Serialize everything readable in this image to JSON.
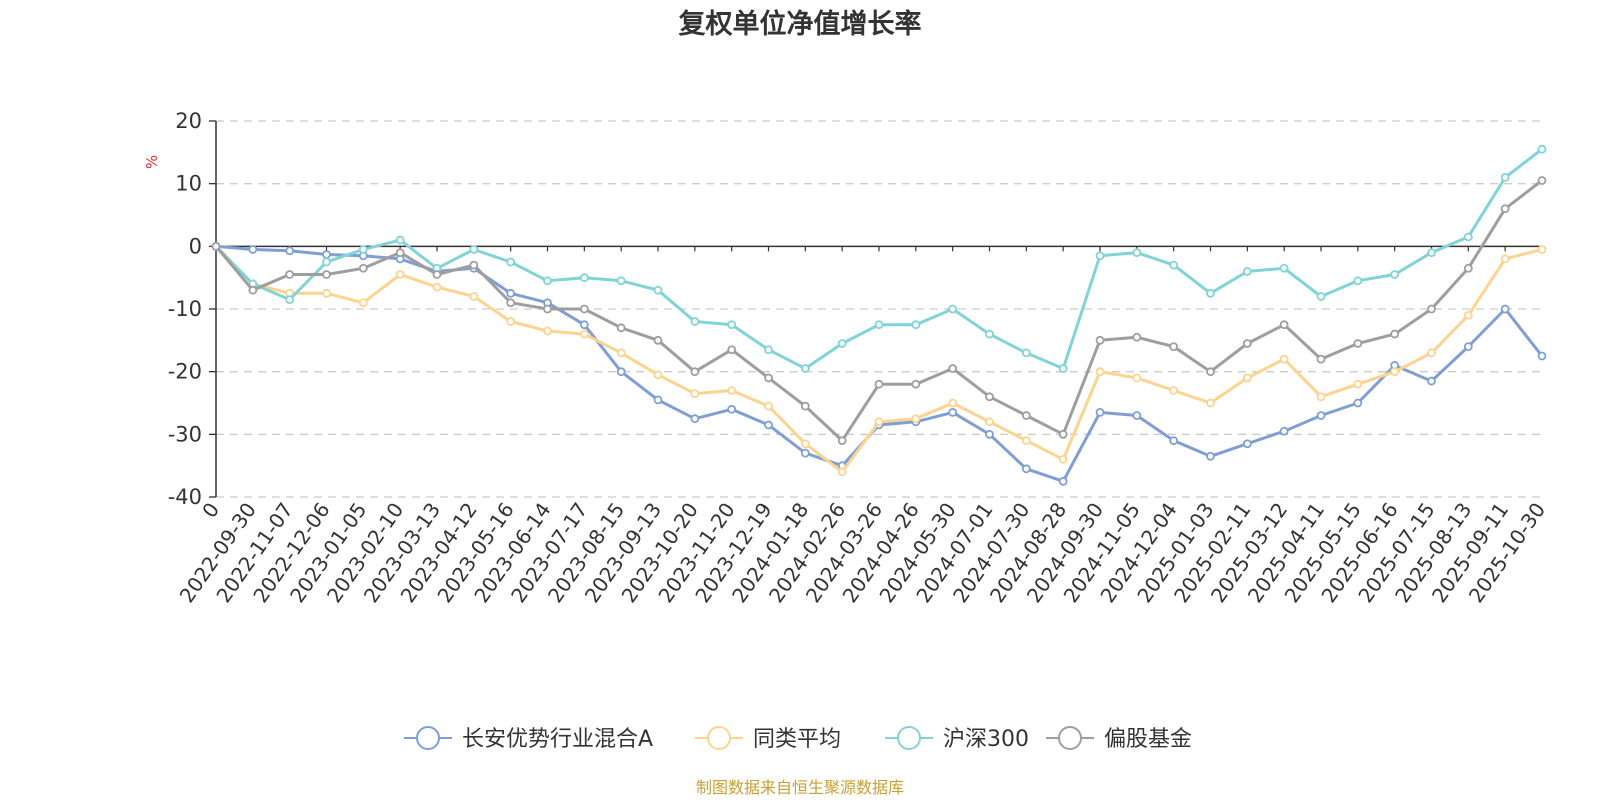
{
  "chart_data": {
    "type": "line",
    "title": "复权单位净值增长率",
    "ylabel": "%",
    "xlabel": "",
    "ylim": [
      -40,
      20
    ],
    "yticks": [
      20,
      10,
      0,
      -10,
      -20,
      -30,
      -40
    ],
    "grid": true,
    "legend_position": "bottom-center",
    "source": "制图数据来自恒生聚源数据库",
    "categories": [
      "0",
      "2022-09-30",
      "2022-11-07",
      "2022-12-06",
      "2023-01-05",
      "2023-02-10",
      "2023-03-13",
      "2023-04-12",
      "2023-05-16",
      "2023-06-14",
      "2023-07-17",
      "2023-08-15",
      "2023-09-13",
      "2023-10-20",
      "2023-11-20",
      "2023-12-19",
      "2024-01-18",
      "2024-02-26",
      "2024-03-26",
      "2024-04-26",
      "2024-05-30",
      "2024-07-01",
      "2024-07-30",
      "2024-08-28",
      "2024-09-30",
      "2024-11-05",
      "2024-12-04",
      "2025-01-03",
      "2025-02-11",
      "2025-03-12",
      "2025-04-11",
      "2025-05-15",
      "2025-06-16",
      "2025-07-15",
      "2025-08-13",
      "2025-09-11",
      "2025-10-30"
    ],
    "series": [
      {
        "name": "长安优势行业混合A",
        "color": "#7f9fd4",
        "values": [
          0,
          -0.5,
          -0.7,
          -1.3,
          -1.5,
          -2.0,
          -4.0,
          -3.5,
          -7.5,
          -9.0,
          -12.5,
          -20.0,
          -24.5,
          -27.5,
          -26.0,
          -28.5,
          -33.0,
          -35.0,
          -28.5,
          -28.0,
          -26.5,
          -30.0,
          -35.5,
          -37.5,
          -26.5,
          -27.0,
          -31.0,
          -33.5,
          -31.5,
          -29.5,
          -27.0,
          -25.0,
          -19.0,
          -21.5,
          -16.0,
          -10.0,
          -17.5
        ]
      },
      {
        "name": "同类平均",
        "color": "#fcd38f",
        "values": [
          0,
          -6.0,
          -7.5,
          -7.5,
          -9.0,
          -4.5,
          -6.5,
          -8.0,
          -12.0,
          -13.5,
          -14.0,
          -17.0,
          -20.5,
          -23.5,
          -23.0,
          -25.5,
          -31.5,
          -36.0,
          -28.0,
          -27.5,
          -25.0,
          -28.0,
          -31.0,
          -34.0,
          -20.0,
          -21.0,
          -23.0,
          -25.0,
          -21.0,
          -18.0,
          -24.0,
          -22.0,
          -20.0,
          -17.0,
          -11.0,
          -2.0,
          -0.5
        ]
      },
      {
        "name": "沪深300",
        "color": "#80d4d6",
        "values": [
          0,
          -6.0,
          -8.5,
          -2.5,
          -0.5,
          1.0,
          -3.5,
          -0.5,
          -2.5,
          -5.5,
          -5.0,
          -5.5,
          -7.0,
          -12.0,
          -12.5,
          -16.5,
          -19.5,
          -15.5,
          -12.5,
          -12.5,
          -10.0,
          -14.0,
          -17.0,
          -19.5,
          -1.5,
          -1.0,
          -3.0,
          -7.5,
          -4.0,
          -3.5,
          -8.0,
          -5.5,
          -4.5,
          -1.0,
          1.5,
          11.0,
          15.5
        ]
      },
      {
        "name": "偏股基金",
        "color": "#9e9e9e",
        "values": [
          0,
          -7.0,
          -4.5,
          -4.5,
          -3.5,
          -1.0,
          -4.5,
          -3.0,
          -9.0,
          -10.0,
          -10.0,
          -13.0,
          -15.0,
          -20.0,
          -16.5,
          -21.0,
          -25.5,
          -31.0,
          -22.0,
          -22.0,
          -19.5,
          -24.0,
          -27.0,
          -30.0,
          -15.0,
          -14.5,
          -16.0,
          -20.0,
          -15.5,
          -12.5,
          -18.0,
          -15.5,
          -14.0,
          -10.0,
          -3.5,
          6.0,
          10.5
        ]
      }
    ]
  }
}
